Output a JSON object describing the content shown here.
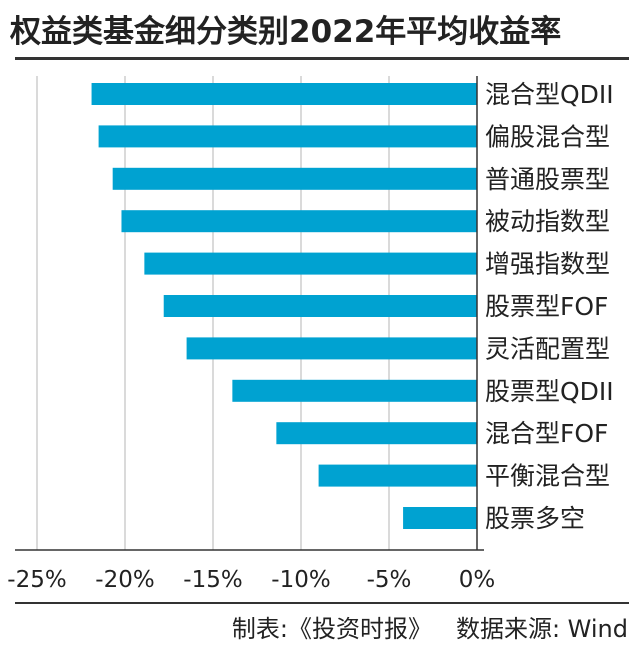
{
  "title": "权益类基金细分类别2022年平均收益率",
  "footer": {
    "maker": "制表:《投资时报》",
    "source": "数据来源: Wind"
  },
  "colors": {
    "bar": "#00a2d1",
    "grid": "#b5b5b5",
    "axis": "#333333",
    "text": "#222222"
  },
  "chart_data": {
    "type": "bar",
    "orientation": "horizontal",
    "categories": [
      "混合型QDII",
      "偏股混合型",
      "普通股票型",
      "被动指数型",
      "增强指数型",
      "股票型FOF",
      "灵活配置型",
      "股票型QDII",
      "混合型FOF",
      "平衡混合型",
      "股票多空"
    ],
    "values": [
      -21.9,
      -21.5,
      -20.7,
      -20.2,
      -18.9,
      -17.8,
      -16.5,
      -13.9,
      -11.4,
      -9.0,
      -4.2
    ],
    "xlim": [
      -25,
      0
    ],
    "xticks": [
      -25,
      -20,
      -15,
      -10,
      -5,
      0
    ],
    "tick_labels": [
      "-25%",
      "-20%",
      "-15%",
      "-10%",
      "-5%",
      "0%"
    ],
    "grid": "vertical",
    "legend": "none"
  }
}
